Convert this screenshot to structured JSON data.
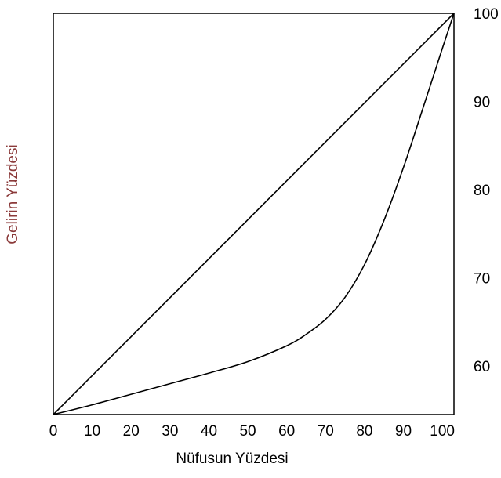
{
  "chart_data": {
    "type": "line",
    "xlabel": "Nüfusun Yüzdesi",
    "ylabel": "Gelirin Yüzdesi",
    "xlim": [
      0,
      103
    ],
    "ylim": [
      54.5,
      100
    ],
    "x_ticks": [
      0,
      10,
      20,
      30,
      40,
      50,
      60,
      70,
      80,
      90,
      100
    ],
    "y_ticks": [
      60,
      70,
      80,
      90,
      100
    ],
    "y_axis_side": "right",
    "grid": false,
    "colors": {
      "line": "#000000",
      "frame": "#000000",
      "xlabel": "#000000",
      "ylabel": "#8B3A3A"
    },
    "series": [
      {
        "x": [
          0,
          103
        ],
        "y": [
          54.5,
          100
        ]
      },
      {
        "x": [
          0,
          10,
          20,
          30,
          40,
          50,
          60,
          65,
          70,
          75,
          80,
          85,
          90,
          95,
          100,
          103
        ],
        "y": [
          54.5,
          55.6,
          56.8,
          58.0,
          59.2,
          60.5,
          62.3,
          63.6,
          65.3,
          67.8,
          71.5,
          76.5,
          82.5,
          89.2,
          96.0,
          100
        ]
      }
    ]
  }
}
